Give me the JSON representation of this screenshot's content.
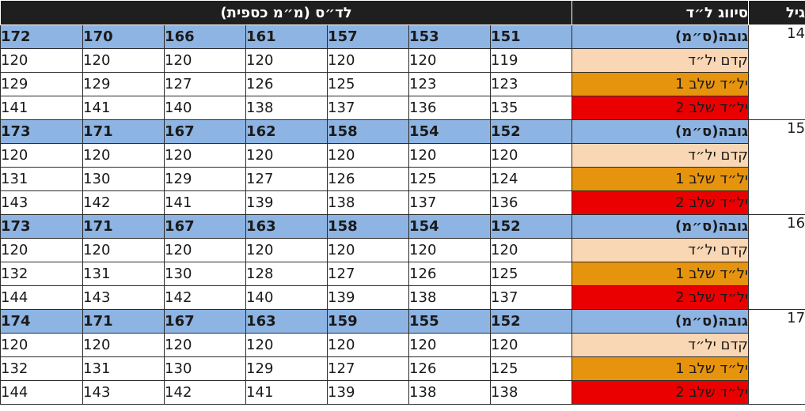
{
  "header": {
    "age": "גיל",
    "classification": "סיווג ל״ד",
    "bp": "לד״ס (מ״מ כספית)"
  },
  "classes": {
    "height": "גובה(ס״מ)",
    "prehypertension": "קדם יל״ד",
    "stage1": "יל״ד שלב 1",
    "stage2": "יל״ד שלב 2"
  },
  "colors": {
    "header_bg": "#1f1f1f",
    "height_row": "#8db4e2",
    "prehypertension": "#fad7b4",
    "stage1": "#e6930e",
    "stage2": "#ea0000"
  },
  "groups": [
    {
      "age": "14",
      "height": [
        "151",
        "153",
        "157",
        "161",
        "166",
        "170",
        "172"
      ],
      "prehypertension": [
        "119",
        "120",
        "120",
        "120",
        "120",
        "120",
        "120"
      ],
      "stage1": [
        "123",
        "123",
        "125",
        "126",
        "127",
        "129",
        "129"
      ],
      "stage2": [
        "135",
        "136",
        "137",
        "138",
        "140",
        "141",
        "141"
      ]
    },
    {
      "age": "15",
      "height": [
        "152",
        "154",
        "158",
        "162",
        "167",
        "171",
        "173"
      ],
      "prehypertension": [
        "120",
        "120",
        "120",
        "120",
        "120",
        "120",
        "120"
      ],
      "stage1": [
        "124",
        "125",
        "126",
        "127",
        "129",
        "130",
        "131"
      ],
      "stage2": [
        "136",
        "137",
        "138",
        "139",
        "141",
        "142",
        "143"
      ]
    },
    {
      "age": "16",
      "height": [
        "152",
        "154",
        "158",
        "163",
        "167",
        "171",
        "173"
      ],
      "prehypertension": [
        "120",
        "120",
        "120",
        "120",
        "120",
        "120",
        "120"
      ],
      "stage1": [
        "125",
        "126",
        "127",
        "128",
        "130",
        "131",
        "132"
      ],
      "stage2": [
        "137",
        "138",
        "139",
        "140",
        "142",
        "143",
        "144"
      ]
    },
    {
      "age": "17",
      "height": [
        "152",
        "155",
        "159",
        "163",
        "167",
        "171",
        "174"
      ],
      "prehypertension": [
        "120",
        "120",
        "120",
        "120",
        "120",
        "120",
        "120"
      ],
      "stage1": [
        "125",
        "126",
        "127",
        "129",
        "130",
        "131",
        "132"
      ],
      "stage2": [
        "138",
        "138",
        "139",
        "141",
        "142",
        "143",
        "144"
      ]
    }
  ]
}
